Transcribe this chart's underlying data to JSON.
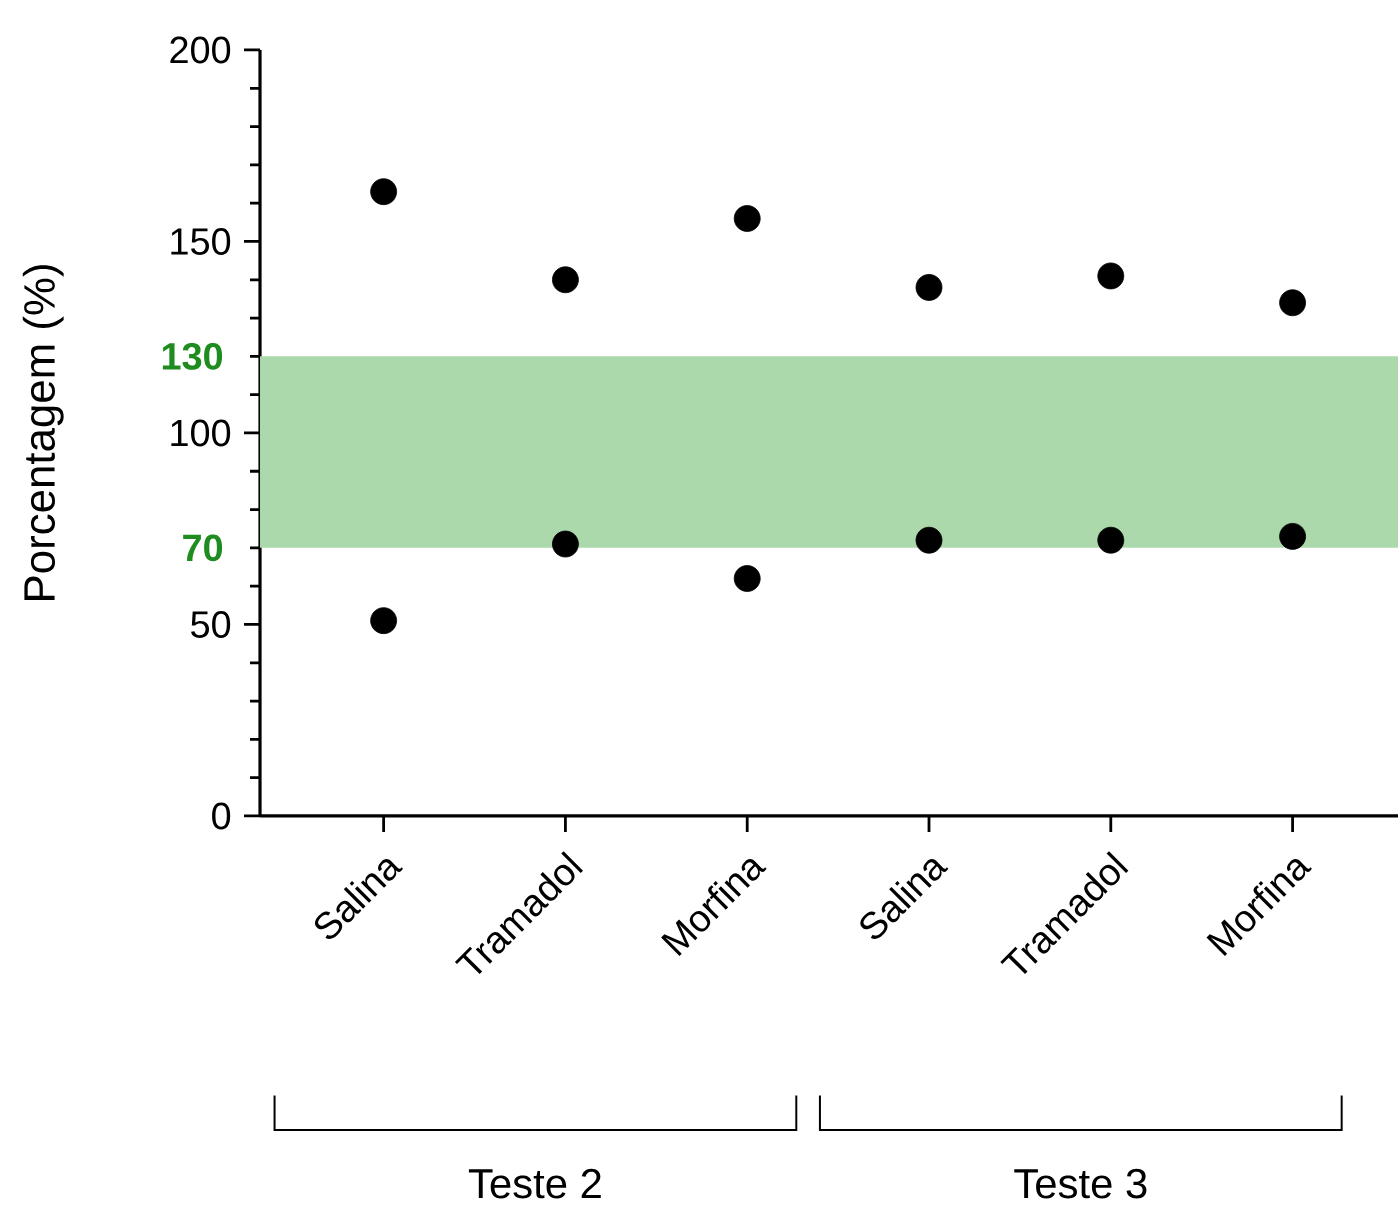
{
  "chart_data": {
    "type": "scatter",
    "ylabel": "Porcentagem (%)",
    "categories": [
      "Salina",
      "Tramadol",
      "Morfina",
      "Salina",
      "Tramadol",
      "Morfina"
    ],
    "series": [
      {
        "color": "#000000",
        "values": [
          163,
          140,
          156,
          138,
          141,
          134
        ]
      },
      {
        "color": "#000000",
        "values": [
          51,
          71,
          62,
          72,
          72,
          73
        ]
      }
    ],
    "ylim": [
      0,
      200
    ],
    "yticks": [
      0,
      50,
      100,
      150,
      200
    ],
    "grid": false,
    "marker": "circle",
    "bands": [
      {
        "axis": "y",
        "from": 70,
        "to": 120,
        "color": "#acd9ac"
      }
    ],
    "annotations": [
      "130",
      "70",
      "Teste 2",
      "Teste 3"
    ]
  }
}
